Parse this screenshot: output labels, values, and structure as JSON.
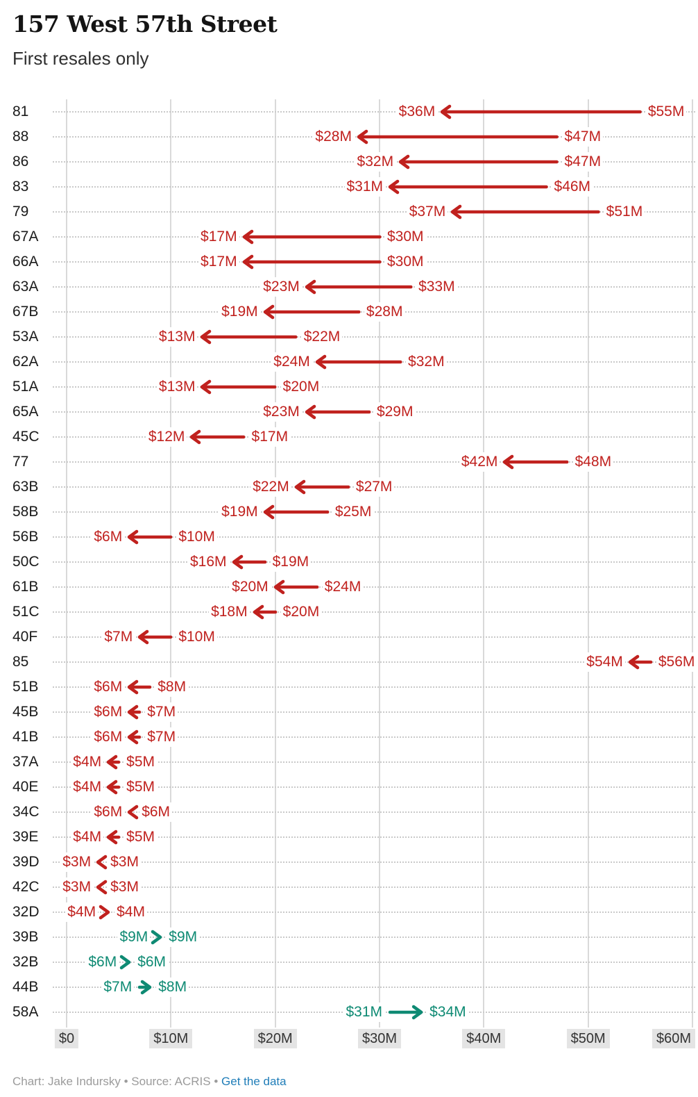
{
  "header": {
    "title": "157 West 57th Street",
    "subtitle": "First resales only"
  },
  "chart_data": {
    "type": "arrow-range",
    "title": "157 West 57th Street",
    "subtitle": "First resales only",
    "xlabel": "",
    "ylabel": "",
    "xlim": [
      0,
      60
    ],
    "x_ticks": [
      "$0",
      "$10M",
      "$20M",
      "$30M",
      "$40M",
      "$50M",
      "$60M"
    ],
    "x_tick_values": [
      0,
      10,
      20,
      30,
      40,
      50,
      60
    ],
    "grid": "vertical-solid-and-row-dotted",
    "legend": "none",
    "colors": {
      "loss": "#c0211e",
      "gain": "#0e8a73"
    },
    "rows": [
      {
        "unit": "81",
        "from": 55,
        "to": 36,
        "from_label": "$55M",
        "to_label": "$36M",
        "direction": "left",
        "color": "loss"
      },
      {
        "unit": "88",
        "from": 47,
        "to": 28,
        "from_label": "$47M",
        "to_label": "$28M",
        "direction": "left",
        "color": "loss"
      },
      {
        "unit": "86",
        "from": 47,
        "to": 32,
        "from_label": "$47M",
        "to_label": "$32M",
        "direction": "left",
        "color": "loss"
      },
      {
        "unit": "83",
        "from": 46,
        "to": 31,
        "from_label": "$46M",
        "to_label": "$31M",
        "direction": "left",
        "color": "loss"
      },
      {
        "unit": "79",
        "from": 51,
        "to": 37,
        "from_label": "$51M",
        "to_label": "$37M",
        "direction": "left",
        "color": "loss"
      },
      {
        "unit": "67A",
        "from": 30,
        "to": 17,
        "from_label": "$30M",
        "to_label": "$17M",
        "direction": "left",
        "color": "loss"
      },
      {
        "unit": "66A",
        "from": 30,
        "to": 17,
        "from_label": "$30M",
        "to_label": "$17M",
        "direction": "left",
        "color": "loss"
      },
      {
        "unit": "63A",
        "from": 33,
        "to": 23,
        "from_label": "$33M",
        "to_label": "$23M",
        "direction": "left",
        "color": "loss"
      },
      {
        "unit": "67B",
        "from": 28,
        "to": 19,
        "from_label": "$28M",
        "to_label": "$19M",
        "direction": "left",
        "color": "loss"
      },
      {
        "unit": "53A",
        "from": 22,
        "to": 13,
        "from_label": "$22M",
        "to_label": "$13M",
        "direction": "left",
        "color": "loss"
      },
      {
        "unit": "62A",
        "from": 32,
        "to": 24,
        "from_label": "$32M",
        "to_label": "$24M",
        "direction": "left",
        "color": "loss"
      },
      {
        "unit": "51A",
        "from": 20,
        "to": 13,
        "from_label": "$20M",
        "to_label": "$13M",
        "direction": "left",
        "color": "loss"
      },
      {
        "unit": "65A",
        "from": 29,
        "to": 23,
        "from_label": "$29M",
        "to_label": "$23M",
        "direction": "left",
        "color": "loss"
      },
      {
        "unit": "45C",
        "from": 17,
        "to": 12,
        "from_label": "$17M",
        "to_label": "$12M",
        "direction": "left",
        "color": "loss"
      },
      {
        "unit": "77",
        "from": 48,
        "to": 42,
        "from_label": "$48M",
        "to_label": "$42M",
        "direction": "left",
        "color": "loss"
      },
      {
        "unit": "63B",
        "from": 27,
        "to": 22,
        "from_label": "$27M",
        "to_label": "$22M",
        "direction": "left",
        "color": "loss"
      },
      {
        "unit": "58B",
        "from": 25,
        "to": 19,
        "from_label": "$25M",
        "to_label": "$19M",
        "direction": "left",
        "color": "loss"
      },
      {
        "unit": "56B",
        "from": 10,
        "to": 6,
        "from_label": "$10M",
        "to_label": "$6M",
        "direction": "left",
        "color": "loss"
      },
      {
        "unit": "50C",
        "from": 19,
        "to": 16,
        "from_label": "$19M",
        "to_label": "$16M",
        "direction": "left",
        "color": "loss"
      },
      {
        "unit": "61B",
        "from": 24,
        "to": 20,
        "from_label": "$24M",
        "to_label": "$20M",
        "direction": "left",
        "color": "loss"
      },
      {
        "unit": "51C",
        "from": 20,
        "to": 18,
        "from_label": "$20M",
        "to_label": "$18M",
        "direction": "left",
        "color": "loss"
      },
      {
        "unit": "40F",
        "from": 10,
        "to": 7,
        "from_label": "$10M",
        "to_label": "$7M",
        "direction": "left",
        "color": "loss"
      },
      {
        "unit": "85",
        "from": 56,
        "to": 54,
        "from_label": "$56M",
        "to_label": "$54M",
        "direction": "left",
        "color": "loss"
      },
      {
        "unit": "51B",
        "from": 8,
        "to": 6,
        "from_label": "$8M",
        "to_label": "$6M",
        "direction": "left",
        "color": "loss"
      },
      {
        "unit": "45B",
        "from": 7,
        "to": 6,
        "from_label": "$7M",
        "to_label": "$6M",
        "direction": "left",
        "color": "loss"
      },
      {
        "unit": "41B",
        "from": 7,
        "to": 6,
        "from_label": "$7M",
        "to_label": "$6M",
        "direction": "left",
        "color": "loss"
      },
      {
        "unit": "37A",
        "from": 5,
        "to": 4,
        "from_label": "$5M",
        "to_label": "$4M",
        "direction": "left",
        "color": "loss"
      },
      {
        "unit": "40E",
        "from": 5,
        "to": 4,
        "from_label": "$5M",
        "to_label": "$4M",
        "direction": "left",
        "color": "loss"
      },
      {
        "unit": "34C",
        "from": 6,
        "to": 6,
        "from_label": "$6M",
        "to_label": "$6M",
        "direction": "left",
        "color": "loss"
      },
      {
        "unit": "39E",
        "from": 5,
        "to": 4,
        "from_label": "$5M",
        "to_label": "$4M",
        "direction": "left",
        "color": "loss"
      },
      {
        "unit": "39D",
        "from": 3,
        "to": 3,
        "from_label": "$3M",
        "to_label": "$3M",
        "direction": "left",
        "color": "loss"
      },
      {
        "unit": "42C",
        "from": 3,
        "to": 3,
        "from_label": "$3M",
        "to_label": "$3M",
        "direction": "left",
        "color": "loss"
      },
      {
        "unit": "32D",
        "from": 4,
        "to": 4,
        "from_label": "$4M",
        "to_label": "$4M",
        "direction": "right",
        "color": "loss"
      },
      {
        "unit": "39B",
        "from": 9,
        "to": 9,
        "from_label": "$9M",
        "to_label": "$9M",
        "direction": "right",
        "color": "gain"
      },
      {
        "unit": "32B",
        "from": 6,
        "to": 6,
        "from_label": "$6M",
        "to_label": "$6M",
        "direction": "right",
        "color": "gain"
      },
      {
        "unit": "44B",
        "from": 7,
        "to": 8,
        "from_label": "$7M",
        "to_label": "$8M",
        "direction": "right",
        "color": "gain"
      },
      {
        "unit": "58A",
        "from": 31,
        "to": 34,
        "from_label": "$31M",
        "to_label": "$34M",
        "direction": "right",
        "color": "gain"
      }
    ]
  },
  "footer": {
    "credit": "Chart: Jake Indursky • Source: ACRIS • ",
    "link_label": "Get the data",
    "link_color": "#1f7db8"
  }
}
